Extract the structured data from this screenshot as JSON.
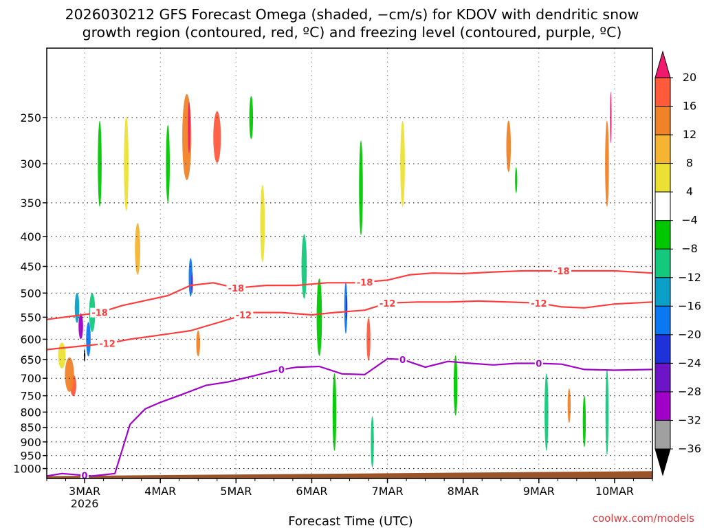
{
  "chart_data": {
    "type": "heatmap",
    "title_line1": "2026030212 GFS Forecast Omega (shaded, −cm/s) for KDOV with dendritic snow",
    "title_line2": "growth region (contoured, red, ºC) and freezing level (contoured, purple, ºC)",
    "xlabel": "Forecast Time (UTC)",
    "credit": "coolwx.com/models",
    "x_range_days": [
      -0.5,
      7.5
    ],
    "x_ticks": [
      {
        "day": 0,
        "label": "3MAR",
        "sublabel": "2026"
      },
      {
        "day": 1,
        "label": "4MAR",
        "sublabel": ""
      },
      {
        "day": 2,
        "label": "5MAR",
        "sublabel": ""
      },
      {
        "day": 3,
        "label": "6MAR",
        "sublabel": ""
      },
      {
        "day": 4,
        "label": "7MAR",
        "sublabel": ""
      },
      {
        "day": 5,
        "label": "8MAR",
        "sublabel": ""
      },
      {
        "day": 6,
        "label": "9MAR",
        "sublabel": ""
      },
      {
        "day": 7,
        "label": "10MAR",
        "sublabel": ""
      }
    ],
    "y_axis": "pressure (hPa), log scale",
    "y_range_hpa": [
      1040,
      190
    ],
    "y_ticks": [
      250,
      300,
      350,
      400,
      450,
      500,
      550,
      600,
      650,
      700,
      750,
      800,
      850,
      900,
      950,
      1000
    ],
    "y_tick_labels": [
      "250",
      "300",
      "350",
      "400",
      "450",
      "500",
      "550",
      "600",
      "650",
      "700",
      "750",
      "800",
      "850",
      "900",
      "950",
      "1000"
    ],
    "colorbar": {
      "levels": [
        "20",
        "16",
        "12",
        "8",
        "4",
        "−4",
        "−8",
        "−12",
        "−16",
        "−20",
        "−24",
        "−28",
        "−32",
        "−36"
      ],
      "colors": [
        "#f0196e",
        "#ff5a3c",
        "#f08228",
        "#f5b432",
        "#ebe132",
        "#ffffff",
        "#00c800",
        "#14c87d",
        "#0aa0c8",
        "#0a78f0",
        "#1e32dc",
        "#6e14c8",
        "#a000c8",
        "#a0a0a0",
        "#000000"
      ]
    },
    "shading": [
      {
        "day": -0.3,
        "p": 640,
        "color": "#ebe132",
        "w": 0.1,
        "h": 0.06
      },
      {
        "day": -0.15,
        "p": 720,
        "color": "#ff5a3c",
        "w": 0.08,
        "h": 0.05
      },
      {
        "day": -0.2,
        "p": 690,
        "color": "#f08228",
        "w": 0.12,
        "h": 0.08
      },
      {
        "day": -0.1,
        "p": 530,
        "color": "#0aa0c8",
        "w": 0.06,
        "h": 0.07
      },
      {
        "day": -0.05,
        "p": 570,
        "color": "#a000c8",
        "w": 0.06,
        "h": 0.06
      },
      {
        "day": 0.0,
        "p": 640,
        "color": "#000000",
        "w": 0.02,
        "h": 0.03
      },
      {
        "day": 0.05,
        "p": 600,
        "color": "#0a78f0",
        "w": 0.06,
        "h": 0.08
      },
      {
        "day": 0.1,
        "p": 540,
        "color": "#14c87d",
        "w": 0.08,
        "h": 0.09
      },
      {
        "day": 0.2,
        "p": 300,
        "color": "#00c800",
        "w": 0.05,
        "h": 0.2
      },
      {
        "day": 0.55,
        "p": 300,
        "color": "#ebe132",
        "w": 0.06,
        "h": 0.22
      },
      {
        "day": 0.7,
        "p": 420,
        "color": "#f5b432",
        "w": 0.07,
        "h": 0.12
      },
      {
        "day": 1.1,
        "p": 300,
        "color": "#00c800",
        "w": 0.05,
        "h": 0.18
      },
      {
        "day": 1.35,
        "p": 270,
        "color": "#f08228",
        "w": 0.12,
        "h": 0.2
      },
      {
        "day": 1.38,
        "p": 260,
        "color": "#f0196e",
        "w": 0.03,
        "h": 0.12
      },
      {
        "day": 1.4,
        "p": 470,
        "color": "#0a78f0",
        "w": 0.05,
        "h": 0.09
      },
      {
        "day": 1.42,
        "p": 480,
        "color": "#6e14c8",
        "w": 0.02,
        "h": 0.05
      },
      {
        "day": 1.5,
        "p": 610,
        "color": "#f08228",
        "w": 0.05,
        "h": 0.06
      },
      {
        "day": 1.75,
        "p": 270,
        "color": "#ff5a3c",
        "w": 0.1,
        "h": 0.12
      },
      {
        "day": 2.2,
        "p": 250,
        "color": "#00c800",
        "w": 0.05,
        "h": 0.1
      },
      {
        "day": 2.35,
        "p": 380,
        "color": "#ebe132",
        "w": 0.06,
        "h": 0.18
      },
      {
        "day": 2.9,
        "p": 450,
        "color": "#14c87d",
        "w": 0.07,
        "h": 0.15
      },
      {
        "day": 3.1,
        "p": 550,
        "color": "#00c800",
        "w": 0.07,
        "h": 0.18
      },
      {
        "day": 3.3,
        "p": 800,
        "color": "#00c800",
        "w": 0.05,
        "h": 0.18
      },
      {
        "day": 3.45,
        "p": 530,
        "color": "#0a78f0",
        "w": 0.04,
        "h": 0.12
      },
      {
        "day": 3.46,
        "p": 530,
        "color": "#1e32dc",
        "w": 0.02,
        "h": 0.06
      },
      {
        "day": 3.65,
        "p": 330,
        "color": "#00c800",
        "w": 0.05,
        "h": 0.22
      },
      {
        "day": 3.75,
        "p": 600,
        "color": "#ff5a3c",
        "w": 0.05,
        "h": 0.1
      },
      {
        "day": 3.8,
        "p": 900,
        "color": "#14c87d",
        "w": 0.04,
        "h": 0.12
      },
      {
        "day": 4.2,
        "p": 300,
        "color": "#ebe132",
        "w": 0.06,
        "h": 0.2
      },
      {
        "day": 4.9,
        "p": 720,
        "color": "#00c800",
        "w": 0.05,
        "h": 0.14
      },
      {
        "day": 5.6,
        "p": 280,
        "color": "#f08228",
        "w": 0.06,
        "h": 0.12
      },
      {
        "day": 5.7,
        "p": 320,
        "color": "#00c800",
        "w": 0.03,
        "h": 0.06
      },
      {
        "day": 6.1,
        "p": 800,
        "color": "#14c87d",
        "w": 0.05,
        "h": 0.18
      },
      {
        "day": 6.4,
        "p": 780,
        "color": "#f08228",
        "w": 0.04,
        "h": 0.08
      },
      {
        "day": 6.6,
        "p": 830,
        "color": "#00c800",
        "w": 0.04,
        "h": 0.12
      },
      {
        "day": 6.9,
        "p": 300,
        "color": "#f08228",
        "w": 0.05,
        "h": 0.2
      },
      {
        "day": 6.95,
        "p": 250,
        "color": "#f0196e",
        "w": 0.02,
        "h": 0.12
      },
      {
        "day": 6.9,
        "p": 800,
        "color": "#14c87d",
        "w": 0.04,
        "h": 0.2
      }
    ],
    "contours": [
      {
        "name": "-18 C",
        "label": "-18",
        "color": "#ff3c3c",
        "days": [
          -0.5,
          0.2,
          0.5,
          0.8,
          1.1,
          1.4,
          1.7,
          2.0,
          2.4,
          2.8,
          3.2,
          3.6,
          4.0,
          4.3,
          4.6,
          5.0,
          5.4,
          5.8,
          6.2,
          6.6,
          7.0,
          7.5
        ],
        "p": [
          555,
          540,
          525,
          515,
          505,
          485,
          480,
          490,
          485,
          485,
          480,
          480,
          475,
          465,
          462,
          463,
          460,
          458,
          458,
          458,
          458,
          462
        ],
        "labels": [
          {
            "day": 0.2
          },
          {
            "day": 2.0
          },
          {
            "day": 3.7
          },
          {
            "day": 6.3
          }
        ]
      },
      {
        "name": "-12 C",
        "label": "-12",
        "color": "#ff3c3c",
        "days": [
          -0.5,
          0.3,
          0.6,
          1.0,
          1.4,
          1.8,
          2.2,
          2.6,
          3.0,
          3.3,
          3.7,
          4.0,
          4.4,
          4.8,
          5.2,
          5.6,
          6.0,
          6.3,
          6.6,
          7.0,
          7.5
        ],
        "p": [
          625,
          610,
          600,
          590,
          580,
          560,
          540,
          540,
          545,
          540,
          535,
          520,
          518,
          518,
          516,
          518,
          520,
          528,
          530,
          522,
          518
        ],
        "labels": [
          {
            "day": 0.3
          },
          {
            "day": 2.1
          },
          {
            "day": 4.0
          },
          {
            "day": 6.0
          }
        ]
      },
      {
        "name": "0 C",
        "label": "0",
        "color": "#a000c8",
        "days": [
          -0.5,
          -0.3,
          0.1,
          0.4,
          0.6,
          0.8,
          1.0,
          1.3,
          1.6,
          1.9,
          2.2,
          2.5,
          2.8,
          3.1,
          3.4,
          3.7,
          4.0,
          4.2,
          4.5,
          4.8,
          5.1,
          5.4,
          5.7,
          6.0,
          6.3,
          6.6,
          7.0,
          7.5
        ],
        "p": [
          1030,
          1020,
          1030,
          1020,
          840,
          790,
          770,
          745,
          720,
          710,
          695,
          680,
          670,
          668,
          688,
          690,
          648,
          650,
          670,
          655,
          660,
          664,
          660,
          660,
          662,
          676,
          678,
          676
        ],
        "labels": [
          {
            "day": 0.0
          },
          {
            "day": 2.6
          },
          {
            "day": 4.2
          },
          {
            "day": 6.0
          }
        ]
      }
    ],
    "terrain": {
      "color": "#9b5428",
      "p_top_start": 1030,
      "p_top_end": 1010
    }
  }
}
